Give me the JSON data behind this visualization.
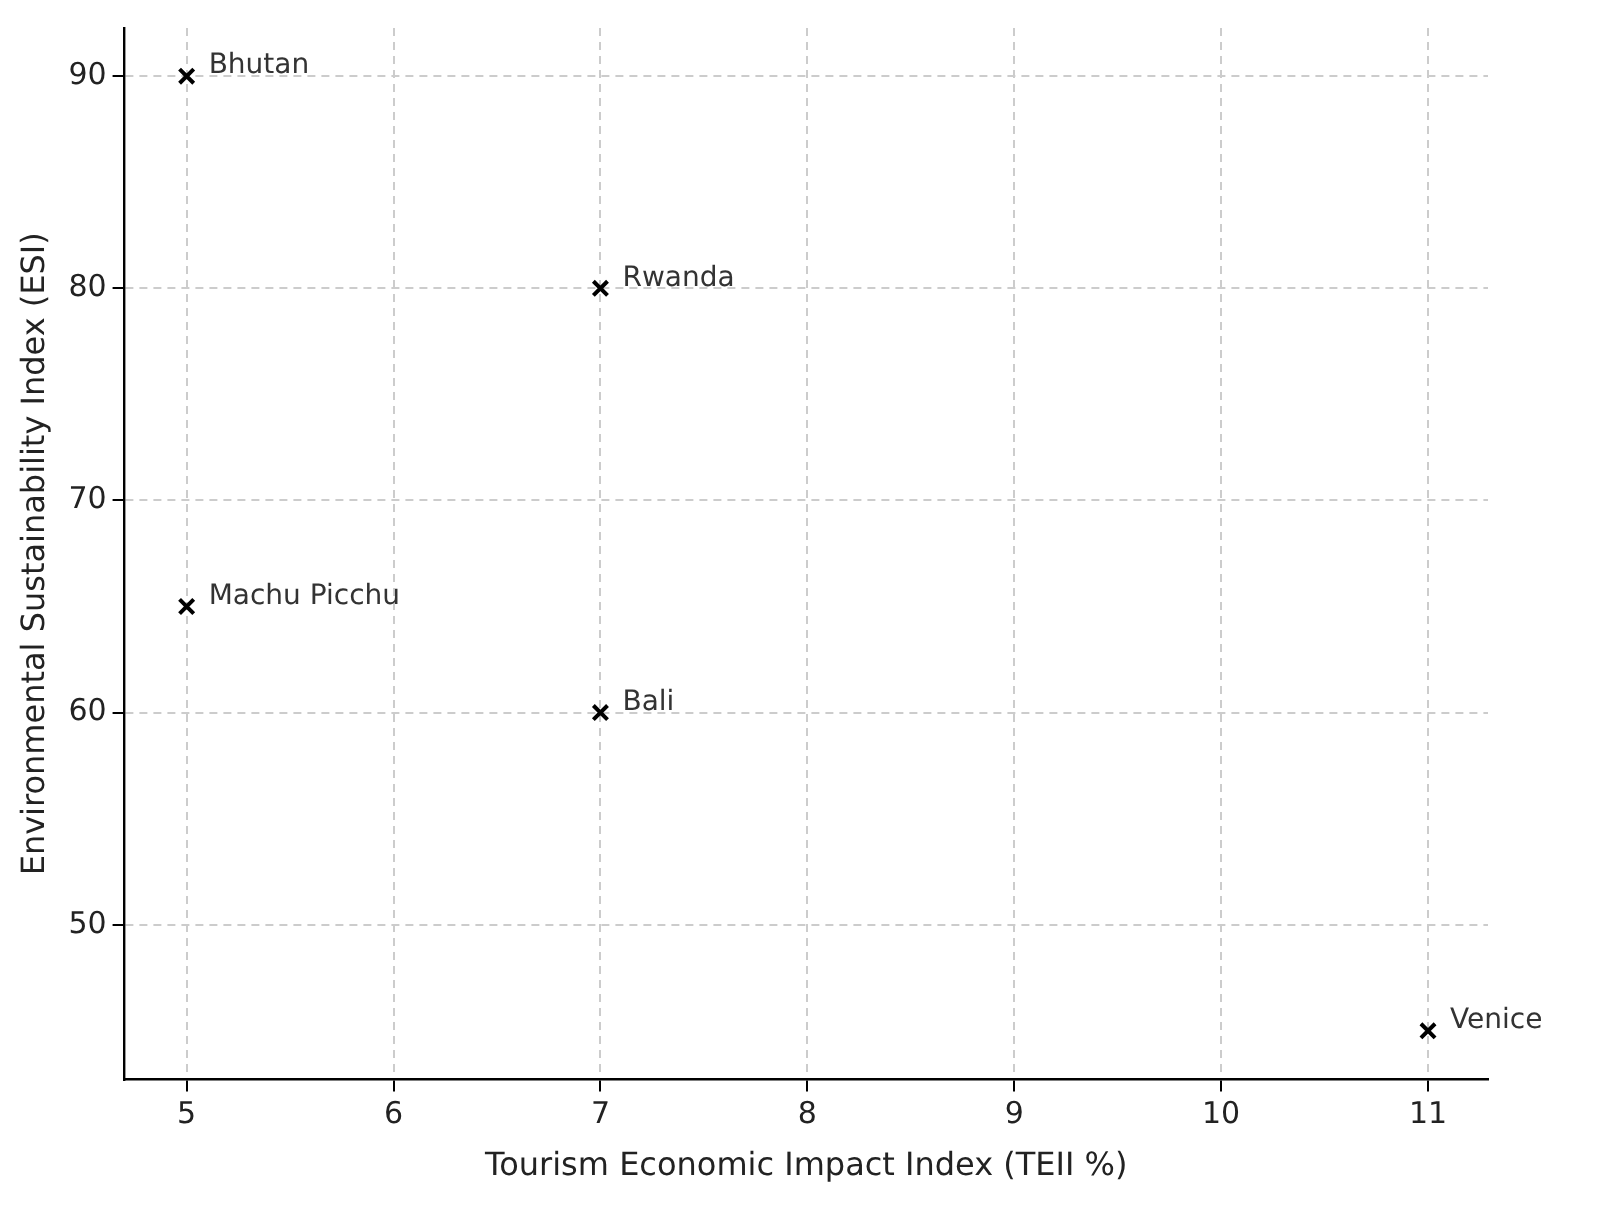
{
  "chart_data": {
    "type": "scatter",
    "xlabel": "Tourism Economic Impact Index (TEII %)",
    "ylabel": "Environmental Sustainability Index (ESI)",
    "x": [
      5,
      7,
      5,
      7,
      11
    ],
    "series": [
      {
        "color": "#000000",
        "values": [
          90,
          80,
          65,
          60,
          45
        ]
      }
    ],
    "marker": "cross",
    "grid": true,
    "legend": false,
    "xlim": [
      4.7,
      11.29
    ],
    "xticks": [
      5,
      6,
      7,
      8,
      9,
      10,
      11
    ],
    "ylim": [
      42.7,
      92.27
    ],
    "yticks": [
      50,
      60,
      70,
      80,
      90
    ],
    "annotations": [
      {
        "text": "Bhutan",
        "x": 5,
        "y": 90
      },
      {
        "text": "Rwanda",
        "x": 7,
        "y": 80
      },
      {
        "text": "Machu Picchu",
        "x": 5,
        "y": 65
      },
      {
        "text": "Bali",
        "x": 7,
        "y": 60
      },
      {
        "text": "Venice",
        "x": 11,
        "y": 45
      }
    ]
  }
}
